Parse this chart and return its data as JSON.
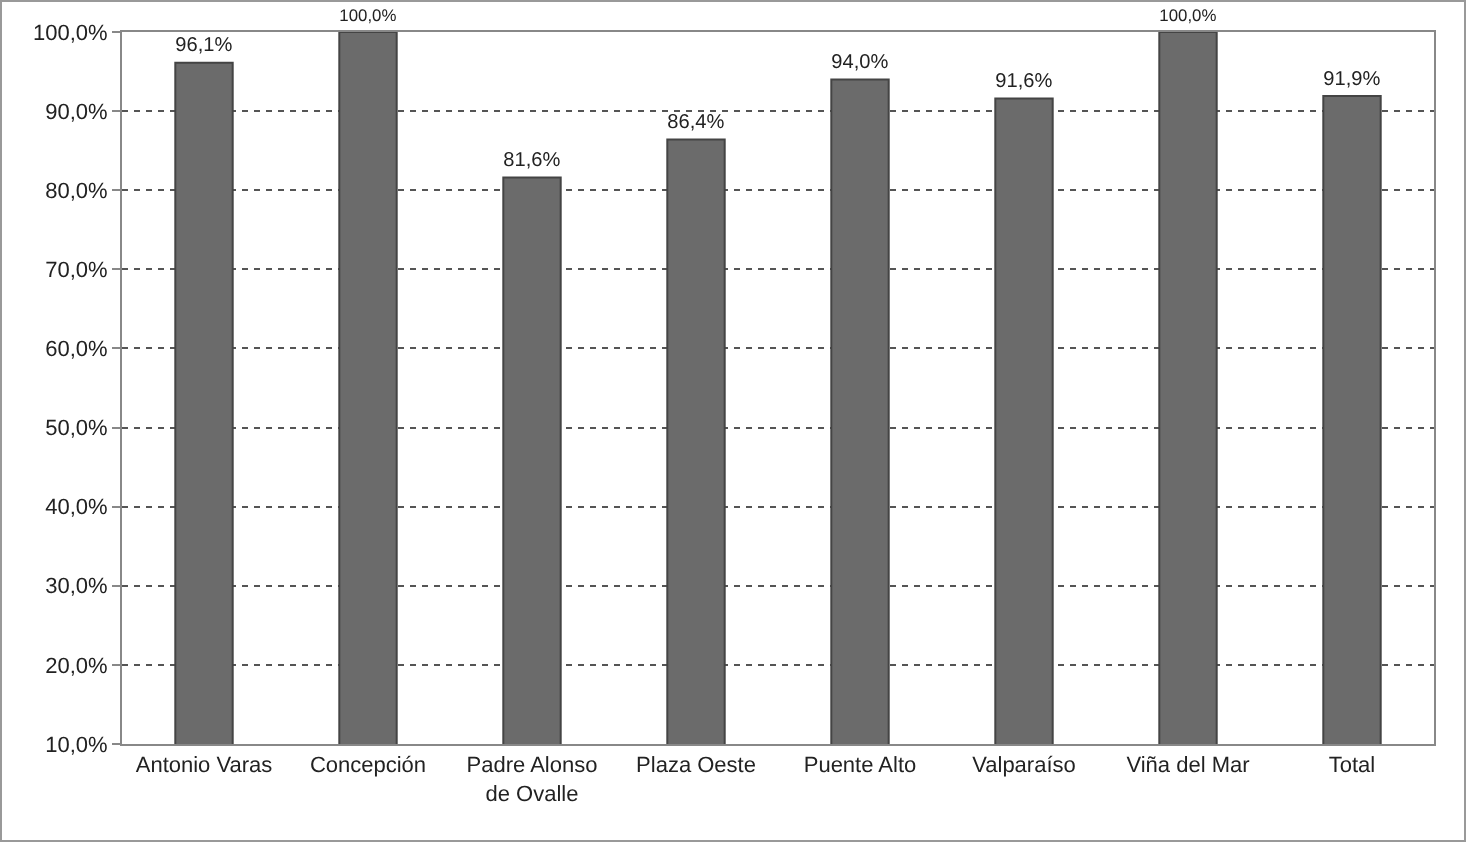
{
  "chart_data": {
    "type": "bar",
    "categories": [
      "Antonio Varas",
      "Concepción",
      "Padre Alonso\nde Ovalle",
      "Plaza Oeste",
      "Puente Alto",
      "Valparaíso",
      "Viña del Mar",
      "Total"
    ],
    "values": [
      96.1,
      100,
      81.6,
      86.4,
      94.0,
      91.6,
      100,
      91.9
    ],
    "value_labels": [
      "96,1%",
      "100,0%",
      "81,6%",
      "86,4%",
      "94,0%",
      "91,6%",
      "100,0%",
      "91,9%"
    ],
    "color": "#6b6b6b",
    "ylim": [
      10,
      100
    ],
    "yticks": [
      {
        "value": 10,
        "label": "10,0%"
      },
      {
        "value": 20,
        "label": "20,0%"
      },
      {
        "value": 30,
        "label": "30,0%"
      },
      {
        "value": 40,
        "label": "40,0%"
      },
      {
        "value": 50,
        "label": "50,0%"
      },
      {
        "value": 60,
        "label": "60,0%"
      },
      {
        "value": 70,
        "label": "70,0%"
      },
      {
        "value": 80,
        "label": "80,0%"
      },
      {
        "value": 90,
        "label": "90,0%"
      },
      {
        "value": 100,
        "label": "100,0%"
      }
    ],
    "grid": "y"
  }
}
